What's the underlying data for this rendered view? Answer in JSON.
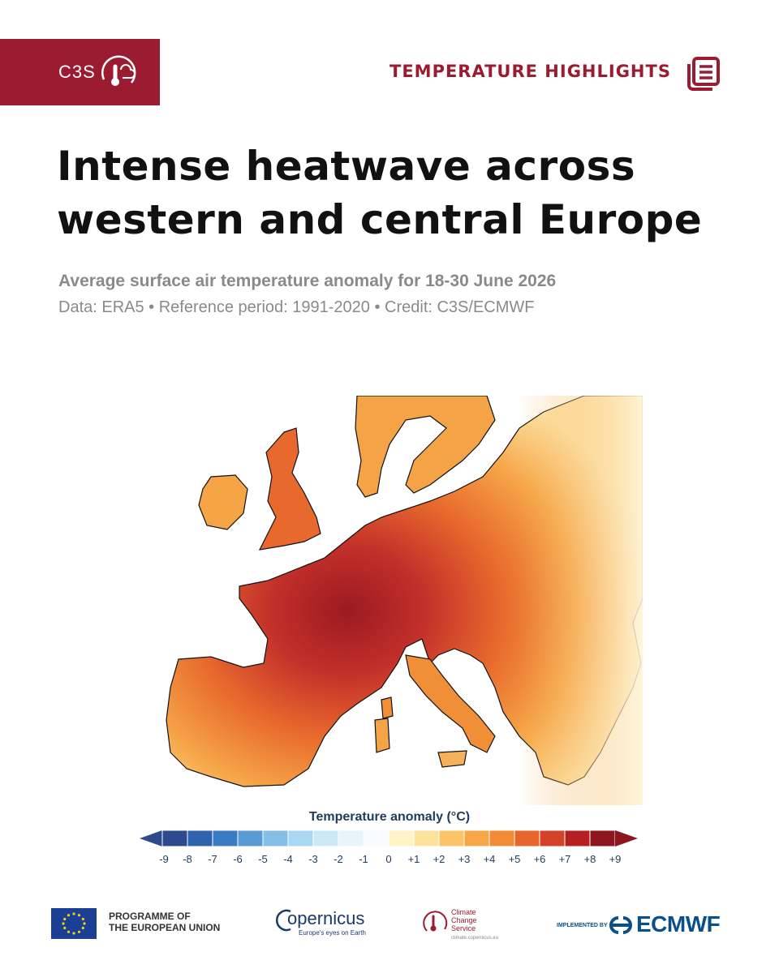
{
  "header": {
    "badge_text": "C3S",
    "section_label": "TEMPERATURE HIGHLIGHTS"
  },
  "title": "Intense heatwave across western and central Europe",
  "subtitle": "Average surface air temperature anomaly for 18-30 June 2026",
  "credits": "Data: ERA5 • Reference period: 1991-2020 • Credit: C3S/ECMWF",
  "legend": {
    "title": "Temperature anomaly (°C)",
    "ticks": [
      "-9",
      "-8",
      "-7",
      "-6",
      "-5",
      "-4",
      "-3",
      "-2",
      "-1",
      "0",
      "+1",
      "+2",
      "+3",
      "+4",
      "+5",
      "+6",
      "+7",
      "+8",
      "+9"
    ],
    "colors": [
      "#2c4a8c",
      "#2f63ad",
      "#3b7bc4",
      "#5a9bd4",
      "#86bfe6",
      "#a9d6f0",
      "#cde8f6",
      "#e7f4fa",
      "#f6fbfd",
      "#fff3c7",
      "#fde39a",
      "#fbc468",
      "#f8a748",
      "#f28b36",
      "#e6662c",
      "#d2432a",
      "#b52123",
      "#8e1620"
    ]
  },
  "footer": {
    "programme": [
      "PROGRAMME OF",
      "THE EUROPEAN UNION"
    ],
    "copernicus_word": "opernicus",
    "copernicus_tagline": "Europe's eyes on Earth",
    "ccs_name": [
      "Climate",
      "Change Service"
    ],
    "ccs_url": "climate.copernicus.eu",
    "implemented_by": "IMPLEMENTED BY",
    "ecmwf": "ECMWF"
  },
  "colors": {
    "brand": "#9b1b30",
    "ecmwf_blue": "#0b4f8a"
  }
}
